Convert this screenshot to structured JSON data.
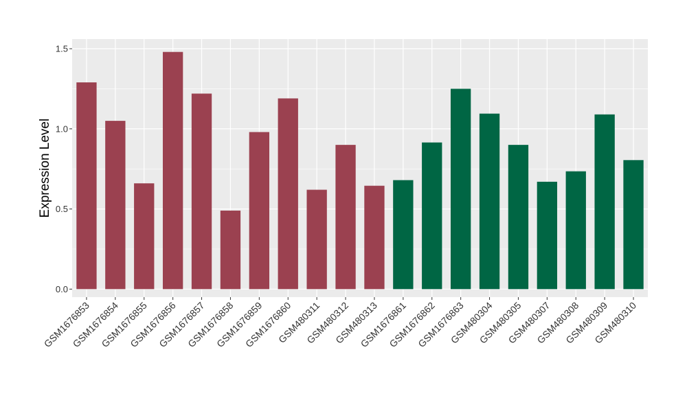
{
  "chart_data": {
    "type": "bar",
    "title": "",
    "xlabel": "",
    "ylabel": "Expression Level",
    "ylim": [
      -0.05,
      1.56
    ],
    "yticks": [
      "0.0",
      "0.5",
      "1.0",
      "1.5"
    ],
    "grid": true,
    "legend": "none",
    "categories": [
      "GSM1676853",
      "GSM1676854",
      "GSM1676855",
      "GSM1676856",
      "GSM1676857",
      "GSM1676858",
      "GSM1676859",
      "GSM1676860",
      "GSM480311",
      "GSM480312",
      "GSM480313",
      "GSM1676861",
      "GSM1676862",
      "GSM1676863",
      "GSM480304",
      "GSM480305",
      "GSM480307",
      "GSM480308",
      "GSM480309",
      "GSM480310"
    ],
    "values": [
      1.29,
      1.05,
      0.66,
      1.48,
      1.22,
      0.49,
      0.98,
      1.19,
      0.62,
      0.9,
      0.645,
      0.68,
      0.915,
      1.25,
      1.095,
      0.9,
      0.67,
      0.735,
      1.09,
      0.805
    ],
    "group_colors": [
      "#9b4150",
      "#9b4150",
      "#9b4150",
      "#9b4150",
      "#9b4150",
      "#9b4150",
      "#9b4150",
      "#9b4150",
      "#9b4150",
      "#9b4150",
      "#9b4150",
      "#006644",
      "#006644",
      "#006644",
      "#006644",
      "#006644",
      "#006644",
      "#006644",
      "#006644",
      "#006644"
    ],
    "panel_color": "#ebebeb",
    "grid_color": "#ffffff"
  }
}
